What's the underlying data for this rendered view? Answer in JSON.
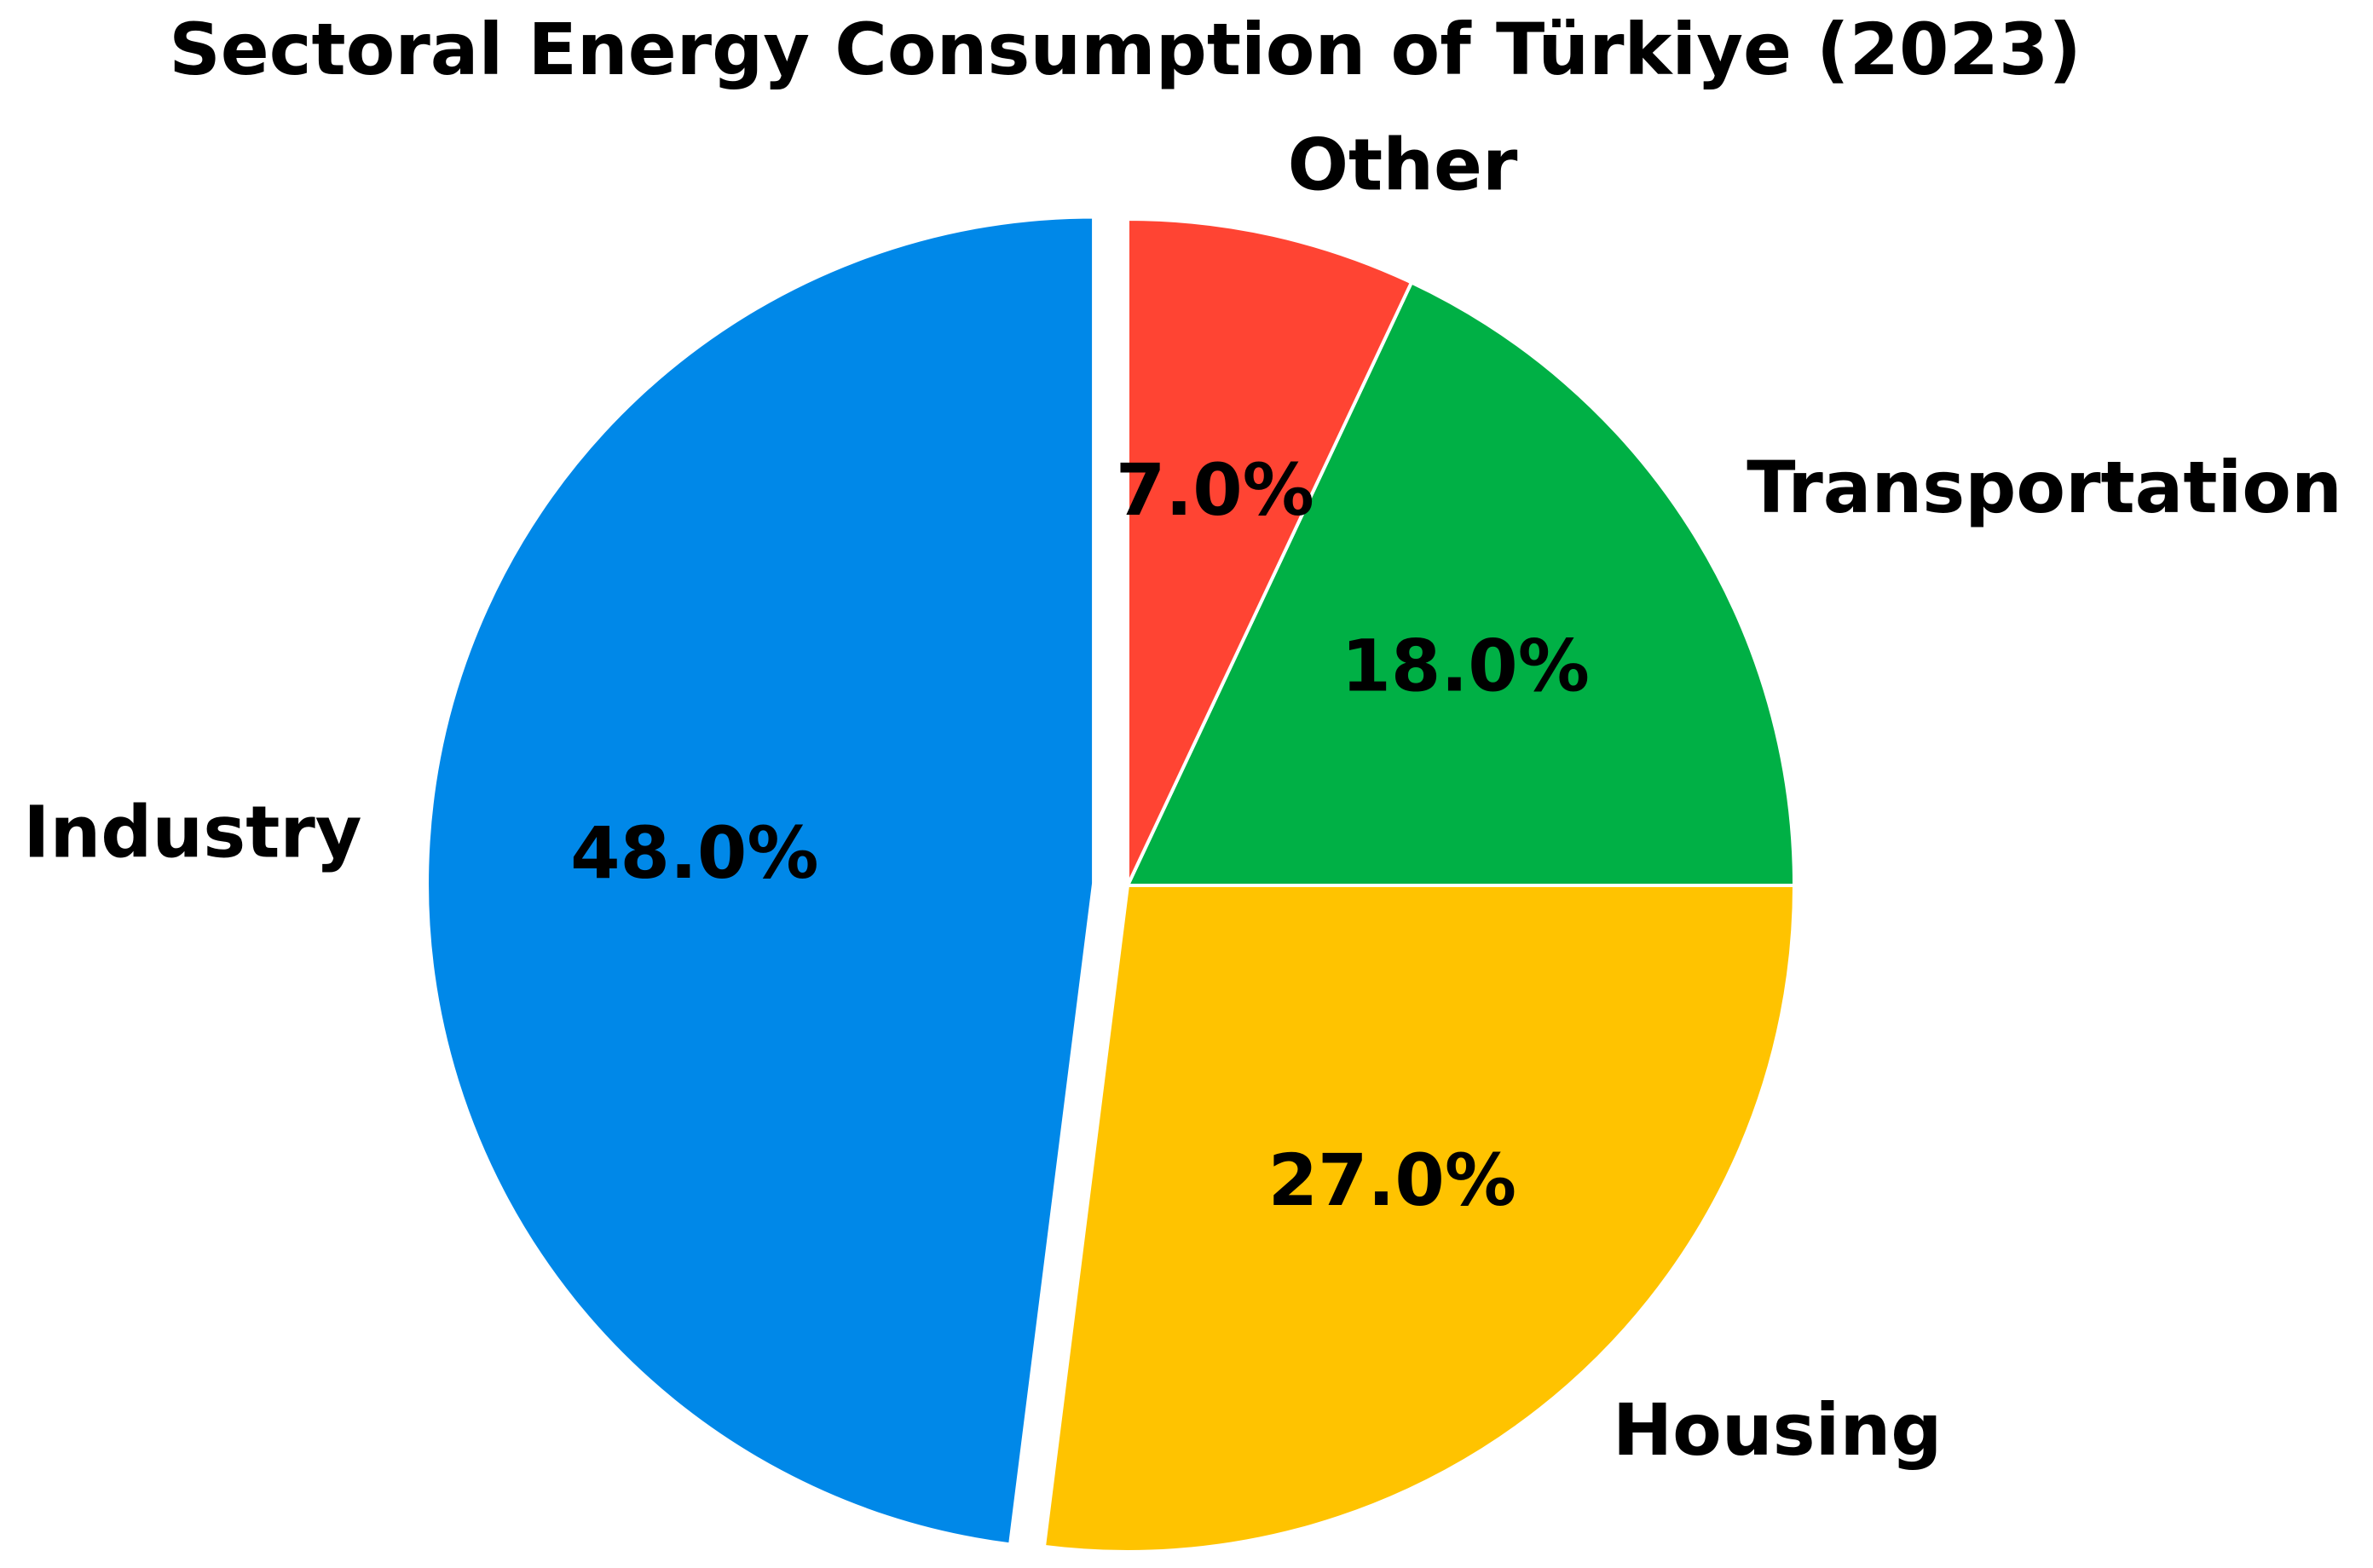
{
  "chart_data": {
    "type": "pie",
    "title": "Sectoral Energy Consumption of Türkiye (2023)",
    "categories": [
      "Industry",
      "Housing",
      "Transportation",
      "Other"
    ],
    "values": [
      48,
      27,
      18,
      7
    ],
    "value_labels": [
      "48.0%",
      "27.0%",
      "18.0%",
      "7.0%"
    ],
    "colors": [
      "#0088e8",
      "#ffc300",
      "#00b045",
      "#ff4433"
    ],
    "exploded": [
      "Industry"
    ]
  }
}
